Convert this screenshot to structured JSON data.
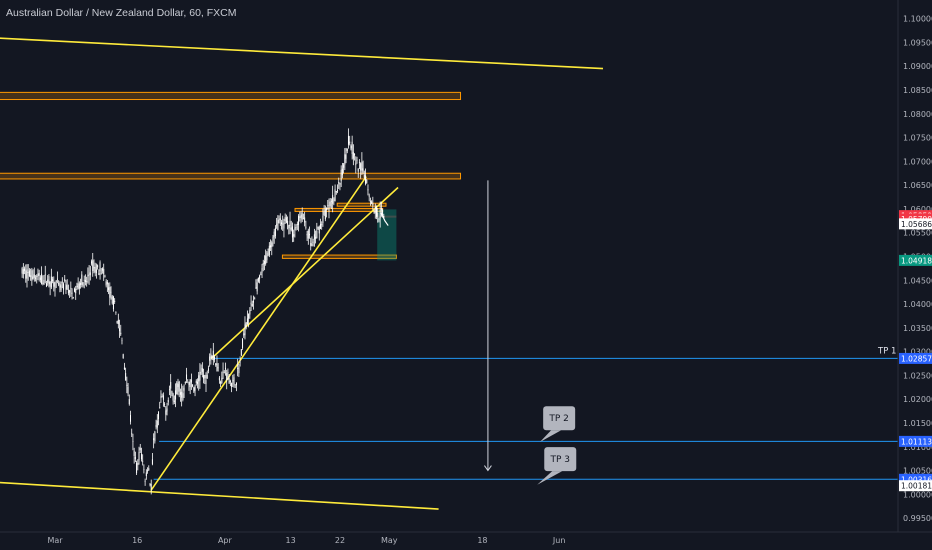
{
  "chart_data": {
    "type": "candlestick",
    "title": "Australian Dollar / New Zealand Dollar, 60, FXCM",
    "y_ticks": [
      "1.10000",
      "1.09500",
      "1.09000",
      "1.08500",
      "1.08000",
      "1.07500",
      "1.07000",
      "1.06500",
      "1.06000",
      "1.05500",
      "1.05000",
      "1.04500",
      "1.04000",
      "1.03500",
      "1.03000",
      "1.02500",
      "1.02000",
      "1.01500",
      "1.01000",
      "1.00500",
      "1.00000",
      "0.99500"
    ],
    "ylim": [
      0.9925,
      1.1035
    ],
    "x_ticks": [
      {
        "label": "Mar",
        "day": 0
      },
      {
        "label": "16",
        "day": 15
      },
      {
        "label": "Apr",
        "day": 31
      },
      {
        "label": "13",
        "day": 43
      },
      {
        "label": "22",
        "day": 52
      },
      {
        "label": "May",
        "day": 61
      },
      {
        "label": "18",
        "day": 78
      },
      {
        "label": "Jun",
        "day": 92
      }
    ],
    "price_path": [
      [
        -6.0,
        1.0468
      ],
      [
        -4.5,
        1.0462
      ],
      [
        -3.0,
        1.0455
      ],
      [
        -1.5,
        1.045
      ],
      [
        0.0,
        1.0445
      ],
      [
        1.0,
        1.0432
      ],
      [
        1.8,
        1.0442
      ],
      [
        2.5,
        1.0428
      ],
      [
        3.2,
        1.0418
      ],
      [
        4.0,
        1.0432
      ],
      [
        4.8,
        1.0452
      ],
      [
        5.5,
        1.044
      ],
      [
        6.0,
        1.0455
      ],
      [
        6.8,
        1.0482
      ],
      [
        7.5,
        1.047
      ],
      [
        8.2,
        1.0478
      ],
      [
        8.8,
        1.0465
      ],
      [
        9.5,
        1.044
      ],
      [
        10.2,
        1.0418
      ],
      [
        10.8,
        1.0398
      ],
      [
        11.5,
        1.0362
      ],
      [
        12.2,
        1.0322
      ],
      [
        12.8,
        1.0255
      ],
      [
        13.5,
        1.0205
      ],
      [
        14.0,
        1.012
      ],
      [
        14.5,
        1.0082
      ],
      [
        15.0,
        1.005
      ],
      [
        15.5,
        1.0095
      ],
      [
        16.0,
        1.0068
      ],
      [
        16.5,
        1.003
      ],
      [
        17.0,
        1.0065
      ],
      [
        17.5,
        1.0008
      ],
      [
        18.0,
        1.0108
      ],
      [
        18.7,
        1.015
      ],
      [
        19.5,
        1.0205
      ],
      [
        20.3,
        1.0175
      ],
      [
        21.0,
        1.0228
      ],
      [
        21.7,
        1.0198
      ],
      [
        22.5,
        1.0235
      ],
      [
        23.3,
        1.0205
      ],
      [
        24.0,
        1.0245
      ],
      [
        24.8,
        1.0232
      ],
      [
        25.5,
        1.0222
      ],
      [
        26.3,
        1.0242
      ],
      [
        27.0,
        1.0262
      ],
      [
        27.6,
        1.0228
      ],
      [
        28.3,
        1.03
      ],
      [
        29.0,
        1.0288
      ],
      [
        29.6,
        1.027
      ],
      [
        30.3,
        1.024
      ],
      [
        31.0,
        1.0262
      ],
      [
        31.7,
        1.0245
      ],
      [
        32.4,
        1.023
      ],
      [
        33.1,
        1.0242
      ],
      [
        33.8,
        1.0278
      ],
      [
        34.5,
        1.034
      ],
      [
        35.2,
        1.0372
      ],
      [
        36.0,
        1.04
      ],
      [
        36.7,
        1.043
      ],
      [
        37.4,
        1.0452
      ],
      [
        38.1,
        1.048
      ],
      [
        38.8,
        1.0505
      ],
      [
        39.5,
        1.053
      ],
      [
        40.2,
        1.0552
      ],
      [
        40.8,
        1.0575
      ],
      [
        41.5,
        1.056
      ],
      [
        42.1,
        1.0582
      ],
      [
        42.8,
        1.0565
      ],
      [
        43.5,
        1.0545
      ],
      [
        44.2,
        1.0568
      ],
      [
        44.9,
        1.059
      ],
      [
        45.5,
        1.0575
      ],
      [
        46.2,
        1.0545
      ],
      [
        46.9,
        1.052
      ],
      [
        47.5,
        1.0538
      ],
      [
        48.2,
        1.056
      ],
      [
        48.9,
        1.0578
      ],
      [
        49.6,
        1.0598
      ],
      [
        50.3,
        1.061
      ],
      [
        51.0,
        1.0628
      ],
      [
        51.7,
        1.0645
      ],
      [
        52.4,
        1.0675
      ],
      [
        53.0,
        1.0712
      ],
      [
        53.6,
        1.0748
      ],
      [
        54.2,
        1.0728
      ],
      [
        54.8,
        1.07
      ],
      [
        55.4,
        1.0685
      ],
      [
        56.0,
        1.069
      ],
      [
        56.6,
        1.0668
      ],
      [
        57.2,
        1.064
      ],
      [
        57.8,
        1.0612
      ],
      [
        58.4,
        1.0598
      ],
      [
        59.0,
        1.0588
      ],
      [
        59.5,
        1.0592
      ],
      [
        60.0,
        1.0585
      ]
    ],
    "projection": [
      [
        59.5,
        1.0592
      ],
      [
        60.2,
        1.0575
      ],
      [
        60.8,
        1.0565
      ]
    ],
    "supply_zones": [
      {
        "day_start": -12,
        "day_end": 74,
        "y_top": 1.0845,
        "y_bottom": 1.083
      },
      {
        "day_start": -12,
        "day_end": 74,
        "y_top": 1.0675,
        "y_bottom": 1.0663
      }
    ],
    "small_zones": [
      {
        "day_start": 43.8,
        "day_end": 59.8,
        "y_top": 1.0601,
        "y_bottom": 1.0595
      },
      {
        "day_start": 51.5,
        "day_end": 60.4,
        "y_top": 1.0612,
        "y_bottom": 1.0606
      },
      {
        "day_start": 41.5,
        "day_end": 62.3,
        "y_top": 1.0503,
        "y_bottom": 1.0496
      }
    ],
    "position_box": {
      "day_start": 58.8,
      "day_end": 62.3,
      "entry": 1.0599,
      "stop": 1.05859,
      "target": 1.04918
    },
    "trend_lines": [
      {
        "p1": [
          -12,
          1.096
        ],
        "p2": [
          100,
          1.0895
        ]
      },
      {
        "p1": [
          -12,
          1.0026
        ],
        "p2": [
          70,
          0.9969
        ]
      },
      {
        "p1": [
          17.5,
          1.0008
        ],
        "p2": [
          56.8,
          1.0668
        ]
      },
      {
        "p1": [
          28.5,
          1.0285
        ],
        "p2": [
          62.6,
          1.0645
        ]
      }
    ],
    "tp_levels": [
      {
        "label": "TP 1",
        "value": 1.02857,
        "day_start": 29.0
      },
      {
        "label": "TP 2",
        "value": 1.01113,
        "day_start": 19.0
      },
      {
        "label": "TP 3",
        "value": 1.00316,
        "day_start": 18.0
      }
    ],
    "callouts": [
      {
        "text": "TP 2",
        "day": 92.0,
        "y": 1.016,
        "anchor_day": 88.5,
        "anchor_y": 1.011
      },
      {
        "text": "TP 3",
        "day": 92.2,
        "y": 1.0074,
        "anchor_day": 88.0,
        "anchor_y": 1.002
      }
    ],
    "arrow": {
      "day": 79.0,
      "y_from": 1.066,
      "y_to": 1.005
    },
    "price_badges": [
      {
        "value": "1.05859",
        "y": 1.05859,
        "color": "#f23645"
      },
      {
        "value": "1.05790",
        "y": 1.0579,
        "color": "#f23645"
      },
      {
        "value": "1.05686",
        "y": 1.05686,
        "color": "#ffffff"
      },
      {
        "value": "1.04918",
        "y": 1.04918,
        "color": "#089981"
      },
      {
        "value": "1.02857",
        "y": 1.02857,
        "color": "#2962ff"
      },
      {
        "value": "1.01113",
        "y": 1.01113,
        "color": "#2962ff"
      },
      {
        "value": "1.00316",
        "y": 1.00316,
        "color": "#2962ff"
      },
      {
        "value": "1.00181",
        "y": 1.00181,
        "color": "#ffffff"
      }
    ],
    "grid": false,
    "colors": {
      "background": "#131722",
      "candle": "#ffffff",
      "zone": "#ff9800",
      "trendline": "#ffeb3b",
      "tp_line": "#2196f3",
      "target": "#089981",
      "stop": "#f23645",
      "axis_text": "#b2b5be",
      "arrow": "#d1d4dc",
      "callout": "#b2b5be"
    }
  }
}
